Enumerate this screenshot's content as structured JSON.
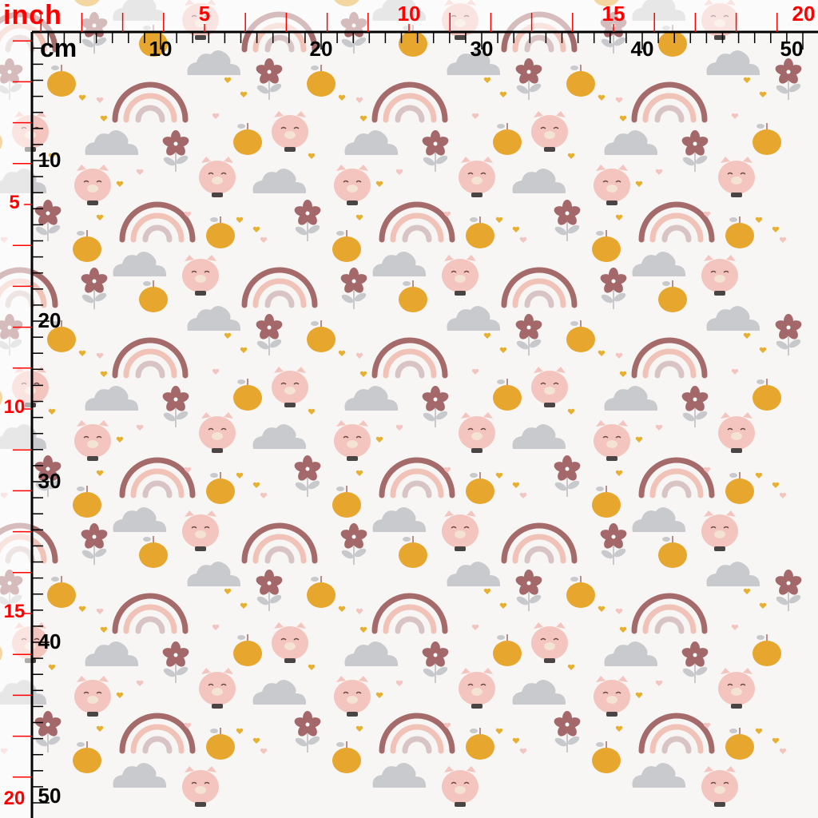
{
  "ruler": {
    "inch_unit_label": "inch",
    "cm_unit_label": "cm",
    "top_cm_labels": [
      "10",
      "20",
      "30",
      "40",
      "50"
    ],
    "top_inch_labels": [
      "5",
      "10",
      "15",
      "20"
    ],
    "left_cm_labels": [
      "10",
      "20",
      "30",
      "40",
      "50"
    ],
    "left_inch_labels": [
      "5",
      "10",
      "15",
      "20"
    ],
    "cm_color": "#000000",
    "inch_color": "#ff0000"
  },
  "fabric": {
    "motifs": [
      "rainbow",
      "cloud",
      "pig-face",
      "orange",
      "flower",
      "heart"
    ],
    "colors": {
      "background": "#f7f6f5",
      "rainbow_outer": "#a56a6a",
      "rainbow_middle": "#f0c2b8",
      "rainbow_inner": "#d8c4c4",
      "cloud": "#c9cacd",
      "pig": "#f4c4be",
      "orange": "#e7a72e",
      "flower": "#a4686a",
      "leaf": "#c8c9cc",
      "heart": "#e8b030"
    }
  }
}
